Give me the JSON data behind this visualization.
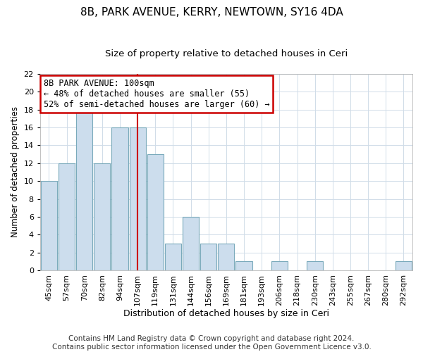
{
  "title": "8B, PARK AVENUE, KERRY, NEWTOWN, SY16 4DA",
  "subtitle": "Size of property relative to detached houses in Ceri",
  "xlabel": "Distribution of detached houses by size in Ceri",
  "ylabel": "Number of detached properties",
  "bar_labels": [
    "45sqm",
    "57sqm",
    "70sqm",
    "82sqm",
    "94sqm",
    "107sqm",
    "119sqm",
    "131sqm",
    "144sqm",
    "156sqm",
    "169sqm",
    "181sqm",
    "193sqm",
    "206sqm",
    "218sqm",
    "230sqm",
    "243sqm",
    "255sqm",
    "267sqm",
    "280sqm",
    "292sqm"
  ],
  "bar_values": [
    10,
    12,
    18,
    12,
    16,
    16,
    13,
    3,
    6,
    3,
    3,
    1,
    0,
    1,
    0,
    1,
    0,
    0,
    0,
    0,
    1
  ],
  "bar_color": "#ccdded",
  "bar_edge_color": "#7aaabb",
  "vline_x": 5,
  "vline_color": "#cc0000",
  "annotation_title": "8B PARK AVENUE: 100sqm",
  "annotation_line1": "← 48% of detached houses are smaller (55)",
  "annotation_line2": "52% of semi-detached houses are larger (60) →",
  "annotation_box_facecolor": "#ffffff",
  "annotation_box_edgecolor": "#cc0000",
  "ylim": [
    0,
    22
  ],
  "yticks": [
    0,
    2,
    4,
    6,
    8,
    10,
    12,
    14,
    16,
    18,
    20,
    22
  ],
  "footer1": "Contains HM Land Registry data © Crown copyright and database right 2024.",
  "footer2": "Contains public sector information licensed under the Open Government Licence v3.0.",
  "title_fontsize": 11,
  "subtitle_fontsize": 9.5,
  "xlabel_fontsize": 9,
  "ylabel_fontsize": 8.5,
  "tick_fontsize": 8,
  "annotation_fontsize": 8.5,
  "footer_fontsize": 7.5,
  "grid_color": "#d0dce8"
}
